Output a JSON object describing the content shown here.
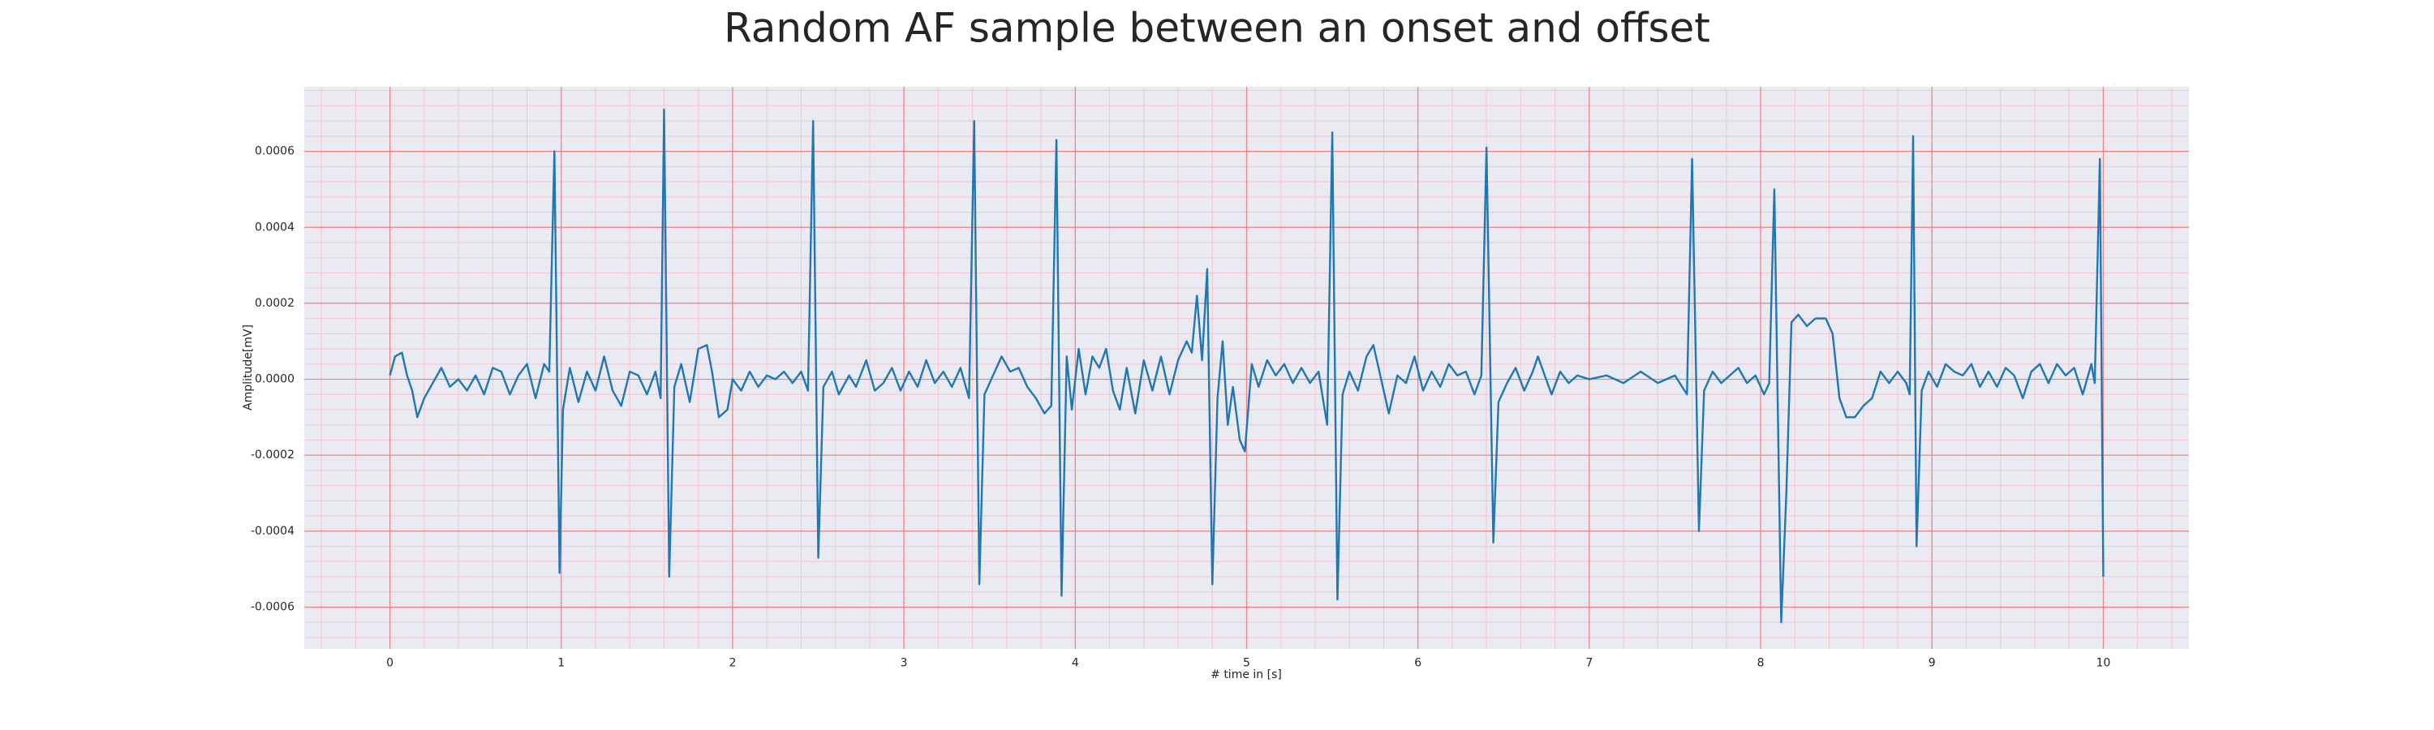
{
  "chart_data": {
    "type": "line",
    "title": "Random AF sample between an onset and offset",
    "x_label": "# time in [s]",
    "y_label": "Amplitude[mV]",
    "color": "#1f77b4",
    "background": "#eaeaf2",
    "grid": true,
    "grid_color": "#f08080",
    "minor_grid": true,
    "minor_grid_color": "#f6c4cc",
    "xlim": [
      -0.5,
      10.5
    ],
    "ylim": [
      -0.00071,
      0.00077
    ],
    "xticks": [
      0,
      1,
      2,
      3,
      4,
      5,
      6,
      7,
      8,
      9,
      10
    ],
    "yticks": [
      -0.0006,
      -0.0004,
      -0.0002,
      {
        "value": 0,
        "label": "0.0000"
      },
      0.0002,
      0.0004,
      0.0006
    ],
    "x": [
      0,
      0.03,
      0.07,
      0.1,
      0.13,
      0.16,
      0.2,
      0.25,
      0.3,
      0.35,
      0.4,
      0.45,
      0.5,
      0.55,
      0.6,
      0.65,
      0.7,
      0.75,
      0.8,
      0.85,
      0.9,
      0.93,
      0.96,
      0.99,
      1.01,
      1.05,
      1.1,
      1.15,
      1.2,
      1.25,
      1.3,
      1.35,
      1.4,
      1.45,
      1.5,
      1.55,
      1.58,
      1.6,
      1.63,
      1.66,
      1.7,
      1.75,
      1.8,
      1.85,
      1.88,
      1.92,
      1.97,
      2.0,
      2.05,
      2.1,
      2.15,
      2.2,
      2.25,
      2.3,
      2.35,
      2.4,
      2.44,
      2.47,
      2.5,
      2.53,
      2.58,
      2.62,
      2.68,
      2.72,
      2.78,
      2.83,
      2.88,
      2.93,
      2.98,
      3.03,
      3.08,
      3.13,
      3.18,
      3.23,
      3.28,
      3.33,
      3.38,
      3.41,
      3.44,
      3.47,
      3.52,
      3.57,
      3.62,
      3.67,
      3.72,
      3.77,
      3.82,
      3.86,
      3.89,
      3.92,
      3.95,
      3.98,
      4.02,
      4.06,
      4.1,
      4.14,
      4.18,
      4.22,
      4.26,
      4.3,
      4.35,
      4.4,
      4.45,
      4.5,
      4.55,
      4.6,
      4.65,
      4.68,
      4.71,
      4.74,
      4.77,
      4.8,
      4.83,
      4.86,
      4.89,
      4.92,
      4.96,
      4.99,
      5.03,
      5.07,
      5.12,
      5.17,
      5.22,
      5.27,
      5.32,
      5.37,
      5.42,
      5.47,
      5.5,
      5.53,
      5.56,
      5.6,
      5.65,
      5.7,
      5.74,
      5.78,
      5.83,
      5.88,
      5.93,
      5.98,
      6.03,
      6.08,
      6.13,
      6.18,
      6.23,
      6.28,
      6.33,
      6.37,
      6.4,
      6.44,
      6.47,
      6.52,
      6.57,
      6.62,
      6.67,
      6.7,
      6.74,
      6.78,
      6.83,
      6.88,
      6.93,
      7.0,
      7.1,
      7.2,
      7.3,
      7.4,
      7.5,
      7.57,
      7.6,
      7.64,
      7.67,
      7.72,
      7.77,
      7.82,
      7.87,
      7.92,
      7.97,
      8.02,
      8.05,
      8.08,
      8.12,
      8.15,
      8.18,
      8.22,
      8.27,
      8.32,
      8.38,
      8.42,
      8.46,
      8.5,
      8.55,
      8.6,
      8.65,
      8.7,
      8.75,
      8.8,
      8.85,
      8.87,
      8.89,
      8.91,
      8.94,
      8.98,
      9.03,
      9.08,
      9.13,
      9.18,
      9.23,
      9.28,
      9.33,
      9.38,
      9.43,
      9.48,
      9.53,
      9.58,
      9.63,
      9.68,
      9.73,
      9.78,
      9.83,
      9.88,
      9.93,
      9.95,
      9.98,
      10.0
    ],
    "values": [
      1e-05,
      6e-05,
      7e-05,
      1e-05,
      -3e-05,
      -0.0001,
      -5e-05,
      -1e-05,
      3e-05,
      -2e-05,
      0,
      -3e-05,
      1e-05,
      -4e-05,
      3e-05,
      2e-05,
      -4e-05,
      1e-05,
      4e-05,
      -5e-05,
      4e-05,
      2e-05,
      0.0006,
      -0.00051,
      -8e-05,
      3e-05,
      -6e-05,
      2e-05,
      -3e-05,
      6e-05,
      -3e-05,
      -7e-05,
      2e-05,
      1e-05,
      -4e-05,
      2e-05,
      -5e-05,
      0.00071,
      -0.00052,
      -2e-05,
      4e-05,
      -6e-05,
      8e-05,
      9e-05,
      2e-05,
      -0.0001,
      -8e-05,
      0,
      -3e-05,
      2e-05,
      -2e-05,
      1e-05,
      0,
      2e-05,
      -1e-05,
      2e-05,
      -3e-05,
      0.00068,
      -0.00047,
      -2e-05,
      2e-05,
      -4e-05,
      1e-05,
      -2e-05,
      5e-05,
      -3e-05,
      -1e-05,
      3e-05,
      -3e-05,
      2e-05,
      -2e-05,
      5e-05,
      -1e-05,
      2e-05,
      -2e-05,
      3e-05,
      -5e-05,
      0.00068,
      -0.00054,
      -4e-05,
      1e-05,
      6e-05,
      2e-05,
      3e-05,
      -2e-05,
      -5e-05,
      -9e-05,
      -7e-05,
      0.00063,
      -0.00057,
      6e-05,
      -8e-05,
      8e-05,
      -4e-05,
      6e-05,
      3e-05,
      8e-05,
      -3e-05,
      -8e-05,
      3e-05,
      -9e-05,
      5e-05,
      -3e-05,
      6e-05,
      -4e-05,
      5e-05,
      0.0001,
      7e-05,
      0.00022,
      5e-05,
      0.00029,
      -0.00054,
      -5e-05,
      0.0001,
      -0.00012,
      -2e-05,
      -0.00016,
      -0.00019,
      4e-05,
      -2e-05,
      5e-05,
      1e-05,
      4e-05,
      -1e-05,
      3e-05,
      -1e-05,
      2e-05,
      -0.00012,
      0.00065,
      -0.00058,
      -4e-05,
      2e-05,
      -3e-05,
      6e-05,
      9e-05,
      1e-05,
      -9e-05,
      1e-05,
      -1e-05,
      6e-05,
      -3e-05,
      2e-05,
      -2e-05,
      4e-05,
      1e-05,
      2e-05,
      -4e-05,
      1e-05,
      0.00061,
      -0.00043,
      -6e-05,
      -1e-05,
      3e-05,
      -3e-05,
      2e-05,
      6e-05,
      1e-05,
      -4e-05,
      2e-05,
      -1e-05,
      1e-05,
      0,
      1e-05,
      -1e-05,
      2e-05,
      -1e-05,
      1e-05,
      -4e-05,
      0.00058,
      -0.0004,
      -3e-05,
      2e-05,
      -1e-05,
      1e-05,
      3e-05,
      -1e-05,
      1e-05,
      -4e-05,
      -1e-05,
      0.0005,
      -0.00064,
      -0.0003,
      0.00015,
      0.00017,
      0.00014,
      0.00016,
      0.00016,
      0.00012,
      -5e-05,
      -0.0001,
      -0.0001,
      -7e-05,
      -5e-05,
      2e-05,
      -1e-05,
      2e-05,
      -1e-05,
      -4e-05,
      0.00064,
      -0.00044,
      -3e-05,
      2e-05,
      -2e-05,
      4e-05,
      2e-05,
      1e-05,
      4e-05,
      -2e-05,
      2e-05,
      -2e-05,
      3e-05,
      1e-05,
      -5e-05,
      2e-05,
      4e-05,
      -1e-05,
      4e-05,
      1e-05,
      3e-05,
      -4e-05,
      4e-05,
      -1e-05,
      0.00058,
      -0.00052
    ]
  }
}
